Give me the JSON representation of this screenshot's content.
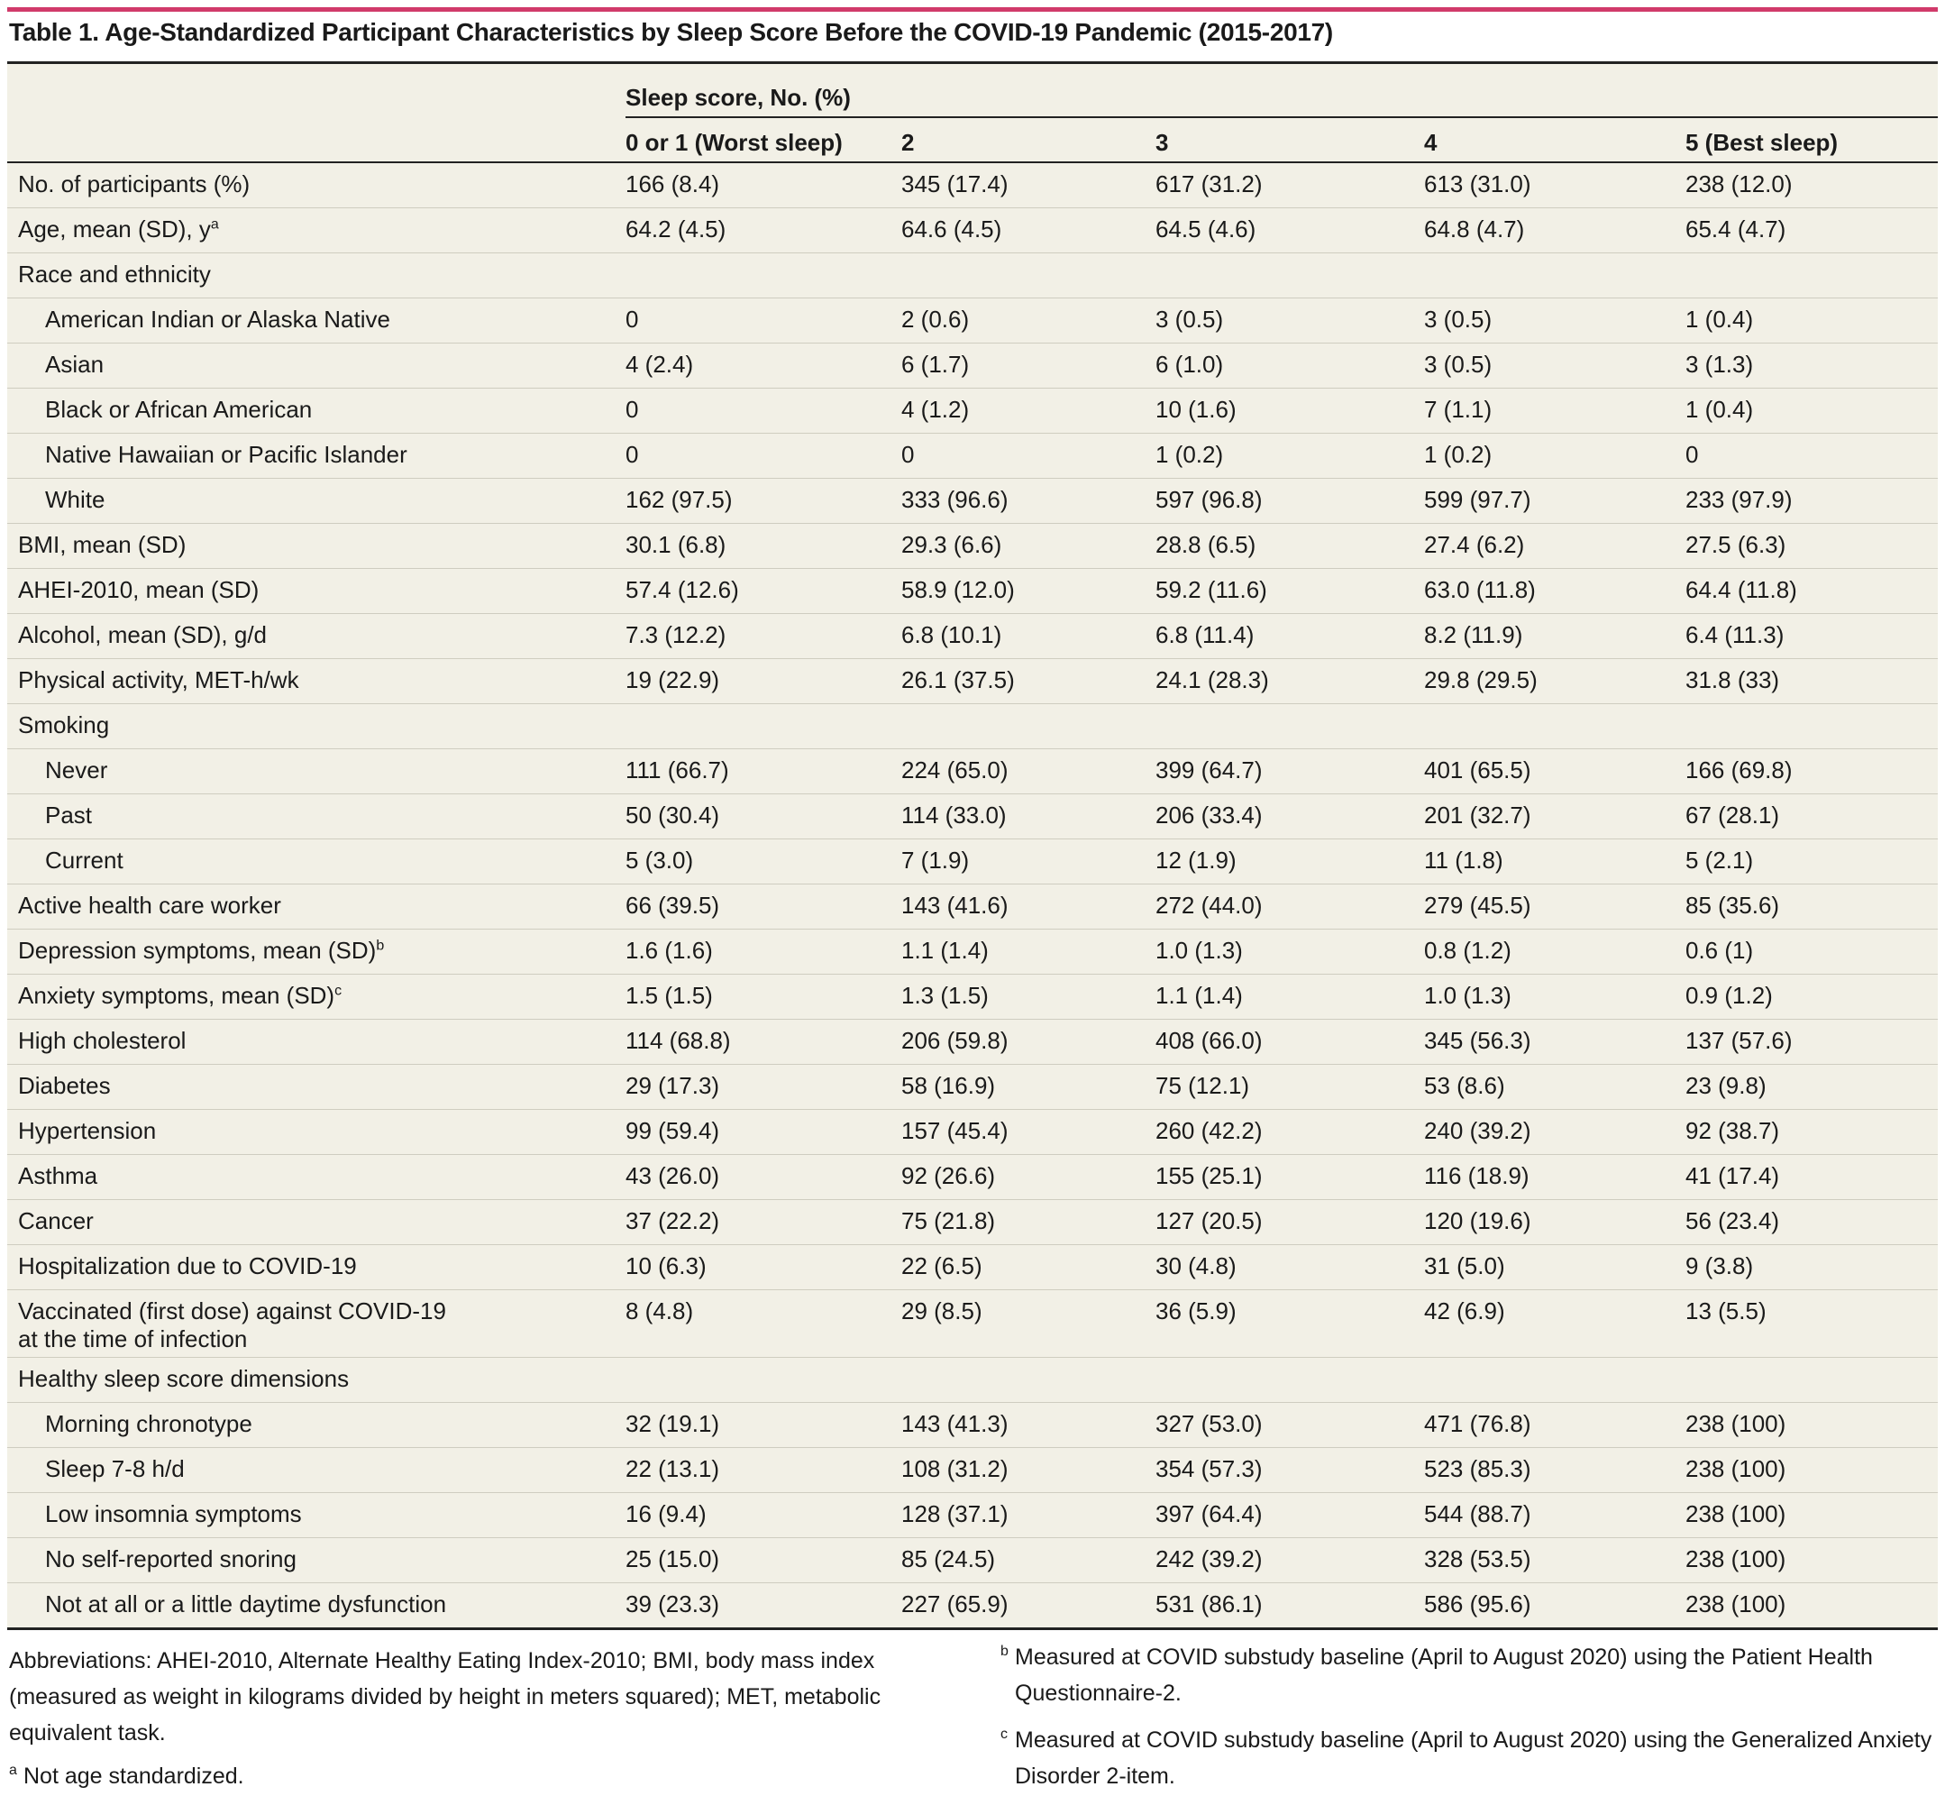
{
  "title": "Table 1. Age-Standardized Participant Characteristics by Sleep Score Before the COVID-19 Pandemic (2015-2017)",
  "header": {
    "group_label": "Sleep score, No. (%)",
    "columns": [
      "0 or 1 (Worst sleep)",
      "2",
      "3",
      "4",
      "5 (Best sleep)"
    ]
  },
  "rows": [
    {
      "label": "No. of participants (%)",
      "values": [
        "166 (8.4)",
        "345 (17.4)",
        "617 (31.2)",
        "613 (31.0)",
        "238 (12.0)"
      ]
    },
    {
      "label": "Age, mean (SD), y",
      "sup": "a",
      "values": [
        "64.2 (4.5)",
        "64.6 (4.5)",
        "64.5 (4.6)",
        "64.8 (4.7)",
        "65.4 (4.7)"
      ]
    },
    {
      "label": "Race and ethnicity",
      "values": []
    },
    {
      "label": "American Indian or Alaska Native",
      "indent": true,
      "values": [
        "0",
        "2 (0.6)",
        "3 (0.5)",
        "3 (0.5)",
        "1 (0.4)"
      ]
    },
    {
      "label": "Asian",
      "indent": true,
      "values": [
        "4 (2.4)",
        "6 (1.7)",
        "6 (1.0)",
        "3 (0.5)",
        "3 (1.3)"
      ]
    },
    {
      "label": "Black or African American",
      "indent": true,
      "values": [
        "0",
        "4 (1.2)",
        "10 (1.6)",
        "7 (1.1)",
        "1 (0.4)"
      ]
    },
    {
      "label": "Native Hawaiian or Pacific Islander",
      "indent": true,
      "values": [
        "0",
        "0",
        "1 (0.2)",
        "1 (0.2)",
        "0"
      ]
    },
    {
      "label": "White",
      "indent": true,
      "values": [
        "162 (97.5)",
        "333 (96.6)",
        "597 (96.8)",
        "599 (97.7)",
        "233 (97.9)"
      ]
    },
    {
      "label": "BMI, mean (SD)",
      "values": [
        "30.1 (6.8)",
        "29.3 (6.6)",
        "28.8 (6.5)",
        "27.4 (6.2)",
        "27.5 (6.3)"
      ]
    },
    {
      "label": "AHEI-2010, mean (SD)",
      "values": [
        "57.4 (12.6)",
        "58.9 (12.0)",
        "59.2 (11.6)",
        "63.0 (11.8)",
        "64.4 (11.8)"
      ]
    },
    {
      "label": "Alcohol, mean (SD), g/d",
      "values": [
        "7.3 (12.2)",
        "6.8 (10.1)",
        "6.8 (11.4)",
        "8.2 (11.9)",
        "6.4 (11.3)"
      ]
    },
    {
      "label": "Physical activity, MET-h/wk",
      "values": [
        "19 (22.9)",
        "26.1 (37.5)",
        "24.1 (28.3)",
        "29.8 (29.5)",
        "31.8 (33)"
      ]
    },
    {
      "label": "Smoking",
      "values": []
    },
    {
      "label": "Never",
      "indent": true,
      "values": [
        "111 (66.7)",
        "224 (65.0)",
        "399 (64.7)",
        "401 (65.5)",
        "166 (69.8)"
      ]
    },
    {
      "label": "Past",
      "indent": true,
      "values": [
        "50 (30.4)",
        "114 (33.0)",
        "206 (33.4)",
        "201 (32.7)",
        "67 (28.1)"
      ]
    },
    {
      "label": "Current",
      "indent": true,
      "values": [
        "5 (3.0)",
        "7 (1.9)",
        "12 (1.9)",
        "11 (1.8)",
        "5 (2.1)"
      ]
    },
    {
      "label": "Active health care worker",
      "values": [
        "66 (39.5)",
        "143 (41.6)",
        "272 (44.0)",
        "279 (45.5)",
        "85 (35.6)"
      ]
    },
    {
      "label": "Depression symptoms, mean (SD)",
      "sup": "b",
      "values": [
        "1.6 (1.6)",
        "1.1 (1.4)",
        "1.0 (1.3)",
        "0.8 (1.2)",
        "0.6 (1)"
      ]
    },
    {
      "label": "Anxiety symptoms, mean (SD)",
      "sup": "c",
      "values": [
        "1.5 (1.5)",
        "1.3 (1.5)",
        "1.1 (1.4)",
        "1.0 (1.3)",
        "0.9 (1.2)"
      ]
    },
    {
      "label": "High cholesterol",
      "values": [
        "114 (68.8)",
        "206 (59.8)",
        "408 (66.0)",
        "345 (56.3)",
        "137 (57.6)"
      ]
    },
    {
      "label": "Diabetes",
      "values": [
        "29 (17.3)",
        "58 (16.9)",
        "75 (12.1)",
        "53 (8.6)",
        "23 (9.8)"
      ]
    },
    {
      "label": "Hypertension",
      "values": [
        "99 (59.4)",
        "157 (45.4)",
        "260 (42.2)",
        "240 (39.2)",
        "92 (38.7)"
      ]
    },
    {
      "label": "Asthma",
      "values": [
        "43 (26.0)",
        "92 (26.6)",
        "155 (25.1)",
        "116 (18.9)",
        "41 (17.4)"
      ]
    },
    {
      "label": "Cancer",
      "values": [
        "37 (22.2)",
        "75 (21.8)",
        "127 (20.5)",
        "120 (19.6)",
        "56 (23.4)"
      ]
    },
    {
      "label": "Hospitalization due to COVID-19",
      "values": [
        "10 (6.3)",
        "22 (6.5)",
        "30 (4.8)",
        "31 (5.0)",
        "9 (3.8)"
      ]
    },
    {
      "label": "Vaccinated (first dose) against COVID-19",
      "label2": "at the time of infection",
      "values": [
        "8 (4.8)",
        "29 (8.5)",
        "36 (5.9)",
        "42 (6.9)",
        "13 (5.5)"
      ]
    },
    {
      "label": "Healthy sleep score dimensions",
      "values": []
    },
    {
      "label": "Morning chronotype",
      "indent": true,
      "values": [
        "32 (19.1)",
        "143 (41.3)",
        "327 (53.0)",
        "471 (76.8)",
        "238 (100)"
      ]
    },
    {
      "label": "Sleep 7-8 h/d",
      "indent": true,
      "values": [
        "22 (13.1)",
        "108 (31.2)",
        "354 (57.3)",
        "523 (85.3)",
        "238 (100)"
      ]
    },
    {
      "label": "Low insomnia symptoms",
      "indent": true,
      "values": [
        "16 (9.4)",
        "128 (37.1)",
        "397 (64.4)",
        "544 (88.7)",
        "238 (100)"
      ]
    },
    {
      "label": "No self-reported snoring",
      "indent": true,
      "values": [
        "25 (15.0)",
        "85 (24.5)",
        "242 (39.2)",
        "328 (53.5)",
        "238 (100)"
      ]
    },
    {
      "label": "Not at all or a little daytime dysfunction",
      "indent": true,
      "values": [
        "39 (23.3)",
        "227 (65.9)",
        "531 (86.1)",
        "586 (95.6)",
        "238 (100)"
      ]
    }
  ],
  "footnotes": {
    "abbreviations": "Abbreviations: AHEI-2010, Alternate Healthy Eating Index-2010; BMI, body mass index (measured as weight in kilograms divided by height in meters squared); MET, metabolic equivalent task.",
    "a": {
      "marker": "a",
      "text": "Not age standardized."
    },
    "b": {
      "marker": "b",
      "text": "Measured at COVID substudy baseline (April to August 2020) using the Patient Health Questionnaire-2."
    },
    "c": {
      "marker": "c",
      "text": "Measured at COVID substudy baseline (April to August 2020) using the Generalized Anxiety Disorder 2-item."
    }
  }
}
